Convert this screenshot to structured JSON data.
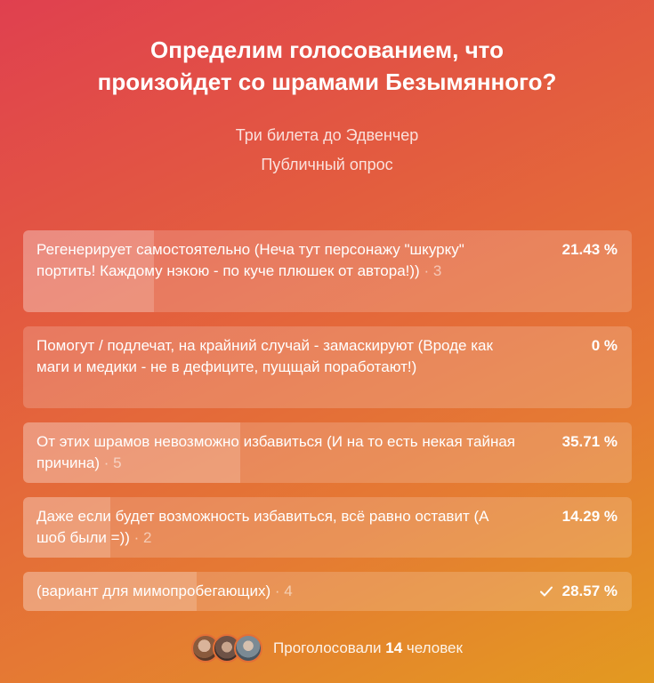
{
  "poll": {
    "title_line1": "Определим голосованием, что",
    "title_line2": "произойдет со шрамами Безымянного?",
    "group_name": "Три билета до Эдвенчер",
    "poll_type": "Публичный опрос",
    "options": [
      {
        "text": "Регенерирует самостоятельно (Неча тут персонажу \"шкурку\" портить! Каждому нэкою - по куче плюшек от автора!))",
        "count": "· 3",
        "percent_label": "21.43 %",
        "percent": 21.43,
        "voted": false
      },
      {
        "text": "Помогут / подлечат, на крайний случай - замаскируют (Вроде как маги и медики - не в дефиците, пущщай поработают!)",
        "count": "",
        "percent_label": "0 %",
        "percent": 0,
        "voted": false
      },
      {
        "text": "От этих шрамов невозможно избавиться (И на то есть некая тайная причина)",
        "count": "· 5",
        "percent_label": "35.71 %",
        "percent": 35.71,
        "voted": false
      },
      {
        "text": "Даже если будет возможность избавиться, всё равно оставит (А шоб были =))",
        "count": "· 2",
        "percent_label": "14.29 %",
        "percent": 14.29,
        "voted": false
      },
      {
        "text": "(вариант для мимопробегающих)",
        "count": "· 4",
        "percent_label": "28.57 %",
        "percent": 28.57,
        "voted": true
      }
    ],
    "footer": {
      "prefix": "Проголосовали",
      "count": "14",
      "suffix": "человек"
    }
  },
  "icons": {
    "voted_mark": "check-icon",
    "voter_avatars": [
      "avatar",
      "avatar",
      "avatar"
    ]
  }
}
